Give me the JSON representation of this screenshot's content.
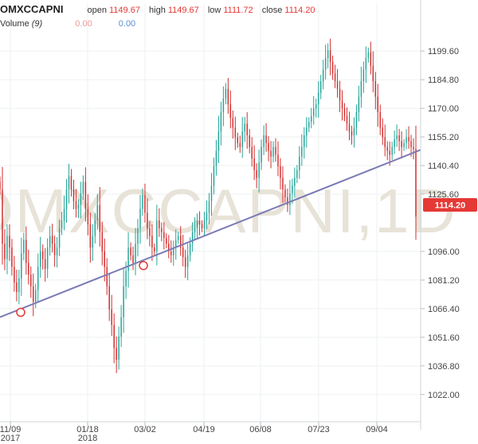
{
  "header": {
    "symbol": "OMXCCAPNI",
    "open_label": "open",
    "open": "1149.67",
    "high_label": "high",
    "high": "1149.67",
    "low_label": "low",
    "low": "1111.72",
    "close_label": "close",
    "close": "1114.20",
    "volume_label": "Volume",
    "volume_period": "(9)",
    "volume_val1": "0.00",
    "volume_val2": "0.00"
  },
  "watermark": "OMXCCAPNI,1D",
  "colors": {
    "up": "#26a69a",
    "down": "#d32f2f",
    "trendline": "#7b7bb5",
    "last_price_bg": "#e53935"
  },
  "chart_data": {
    "type": "candlestick",
    "title": "OMXCCAPNI",
    "interval": "1D",
    "ylim": [
      1010,
      1212
    ],
    "yticks": [
      "1199.60",
      "1184.80",
      "1170.00",
      "1155.20",
      "1140.40",
      "1125.60",
      "1096.00",
      "1081.20",
      "1066.40",
      "1051.60",
      "1036.80",
      "1022.00"
    ],
    "xticks": [
      {
        "label": "11/09",
        "sub": "2017"
      },
      {
        "label": "01/18",
        "sub": "2018"
      },
      {
        "label": "03/02",
        "sub": ""
      },
      {
        "label": "04/19",
        "sub": ""
      },
      {
        "label": "06/08",
        "sub": ""
      },
      {
        "label": "07/23",
        "sub": ""
      },
      {
        "label": "09/04",
        "sub": ""
      }
    ],
    "last_price": "1114.20",
    "series_close": [
      1128,
      1100,
      1092,
      1104,
      1098,
      1088,
      1080,
      1075,
      1082,
      1095,
      1102,
      1090,
      1084,
      1078,
      1070,
      1076,
      1088,
      1096,
      1092,
      1087,
      1098,
      1104,
      1100,
      1094,
      1098,
      1108,
      1112,
      1118,
      1128,
      1135,
      1128,
      1122,
      1118,
      1120,
      1126,
      1132,
      1118,
      1110,
      1098,
      1104,
      1112,
      1120,
      1106,
      1096,
      1088,
      1078,
      1066,
      1058,
      1046,
      1040,
      1052,
      1062,
      1078,
      1086,
      1098,
      1094,
      1090,
      1100,
      1108,
      1118,
      1125,
      1116,
      1108,
      1104,
      1098,
      1096,
      1112,
      1108,
      1106,
      1103,
      1100,
      1096,
      1094,
      1098,
      1102,
      1104,
      1098,
      1093,
      1088,
      1094,
      1100,
      1106,
      1108,
      1112,
      1110,
      1108,
      1112,
      1116,
      1122,
      1130,
      1140,
      1148,
      1158,
      1168,
      1175,
      1180,
      1172,
      1165,
      1160,
      1155,
      1152,
      1150,
      1158,
      1162,
      1156,
      1150,
      1144,
      1138,
      1134,
      1142,
      1150,
      1156,
      1152,
      1148,
      1145,
      1150,
      1146,
      1140,
      1134,
      1128,
      1124,
      1120,
      1126,
      1130,
      1134,
      1138,
      1145,
      1150,
      1156,
      1160,
      1163,
      1166,
      1170,
      1172,
      1178,
      1184,
      1190,
      1196,
      1200,
      1194,
      1188,
      1184,
      1180,
      1174,
      1170,
      1166,
      1162,
      1158,
      1156,
      1160,
      1168,
      1176,
      1184,
      1190,
      1196,
      1199,
      1192,
      1184,
      1176,
      1168,
      1160,
      1155,
      1150,
      1148,
      1146,
      1150,
      1154,
      1156,
      1153,
      1150,
      1152,
      1155,
      1153,
      1150,
      1149,
      1114
    ],
    "trendline": [
      {
        "date": "11/01/2017",
        "value": 1062
      },
      {
        "date": "10/05/2018",
        "value": 1148
      }
    ],
    "trendline_markers": [
      {
        "date": "11/09/2017",
        "value": 1064.5
      },
      {
        "date": "03/02/2018",
        "value": 1088.7
      }
    ]
  }
}
